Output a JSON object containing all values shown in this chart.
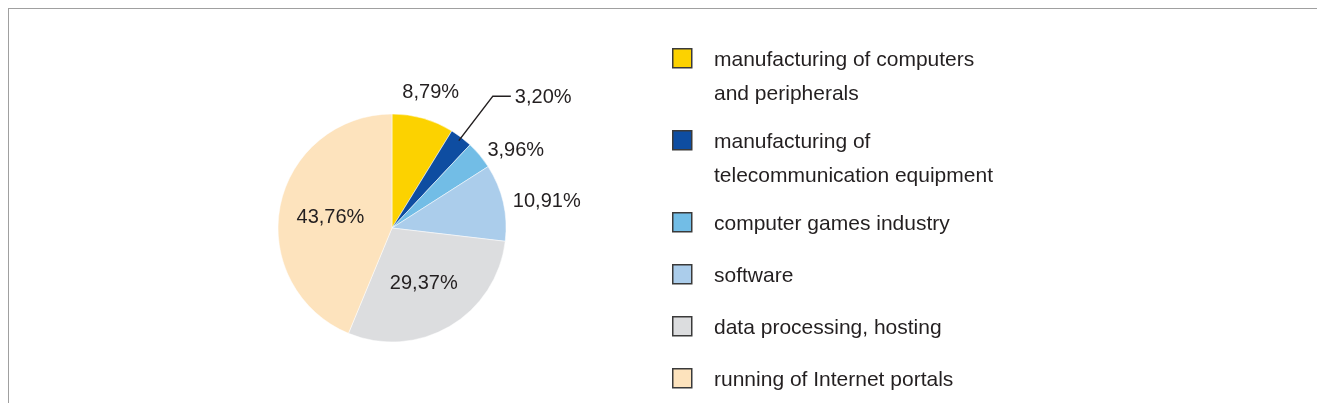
{
  "chart_data": {
    "type": "pie",
    "categories": [
      "manufacturing of computers and peripherals",
      "manufacturing of telecommunication equipment",
      "computer games industry",
      "software",
      "data processing, hosting",
      "running of Internet portals"
    ],
    "values": [
      8.79,
      3.2,
      3.96,
      10.91,
      29.37,
      43.76
    ],
    "value_labels": [
      "8,79%",
      "3,20%",
      "3,96%",
      "10,91%",
      "29,37%",
      "43,76%"
    ],
    "colors": [
      "#fcd200",
      "#0e4da1",
      "#72bde6",
      "#abcdeb",
      "#dcdddf",
      "#fde3bd"
    ],
    "legend": "right"
  }
}
